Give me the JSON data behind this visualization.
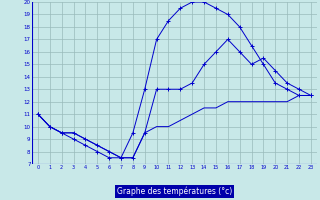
{
  "title": "Graphe des températures (°c)",
  "xlim": [
    -0.5,
    23.5
  ],
  "ylim": [
    7,
    20
  ],
  "yticks": [
    7,
    8,
    9,
    10,
    11,
    12,
    13,
    14,
    15,
    16,
    17,
    18,
    19,
    20
  ],
  "xticks": [
    0,
    1,
    2,
    3,
    4,
    5,
    6,
    7,
    8,
    9,
    10,
    11,
    12,
    13,
    14,
    15,
    16,
    17,
    18,
    19,
    20,
    21,
    22,
    23
  ],
  "background_color": "#c8e8e8",
  "line_color": "#0000cc",
  "grid_color": "#99bbbb",
  "bottom_bar_color": "#0000aa",
  "line1_x": [
    0,
    1,
    2,
    3,
    4,
    5,
    6,
    7,
    8,
    9,
    10,
    11,
    12,
    13,
    14,
    15,
    16,
    17,
    18,
    19,
    20,
    21,
    22,
    23
  ],
  "line1_y": [
    11,
    10,
    9.5,
    9,
    8.5,
    8,
    7.5,
    7.5,
    9.5,
    13,
    17,
    18.5,
    19.5,
    20,
    20,
    19.5,
    19,
    18,
    16.5,
    15,
    13.5,
    13,
    12.5,
    12.5
  ],
  "line2_x": [
    0,
    1,
    2,
    3,
    4,
    5,
    6,
    7,
    8,
    9,
    10,
    11,
    12,
    13,
    14,
    15,
    16,
    17,
    18,
    19,
    20,
    21,
    22,
    23
  ],
  "line2_y": [
    11,
    10,
    9.5,
    9.5,
    9,
    8.5,
    8,
    7.5,
    7.5,
    9.5,
    13,
    13,
    13,
    13.5,
    15,
    16,
    17,
    16,
    15,
    15.5,
    14.5,
    13.5,
    13,
    12.5
  ],
  "line3_x": [
    0,
    1,
    2,
    3,
    4,
    5,
    6,
    7,
    8,
    9,
    10,
    11,
    12,
    13,
    14,
    15,
    16,
    17,
    18,
    19,
    20,
    21,
    22,
    23
  ],
  "line3_y": [
    11,
    10,
    9.5,
    9.5,
    9,
    8.5,
    8,
    7.5,
    7.5,
    9.5,
    10,
    10,
    10.5,
    11,
    11.5,
    11.5,
    12,
    12,
    12,
    12,
    12,
    12,
    12.5,
    12.5
  ]
}
